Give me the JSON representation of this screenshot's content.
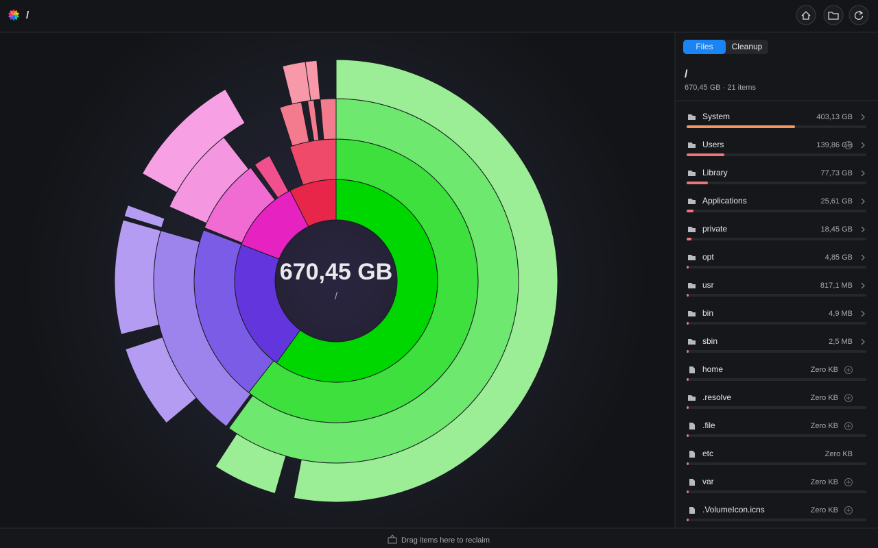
{
  "toolbar": {
    "path": "/"
  },
  "center": {
    "size": "670,45 GB",
    "path": "/"
  },
  "sidebar": {
    "tabs": [
      "Files",
      "Cleanup"
    ],
    "title": "/",
    "summary": "670,45 GB · 21 items",
    "items": [
      {
        "name": "System",
        "size": "403,13 GB"
      },
      {
        "name": "Users",
        "size": "139,86 GB"
      },
      {
        "name": "Library",
        "size": "77,73 GB"
      },
      {
        "name": "Applications",
        "size": "25,61 GB"
      },
      {
        "name": "private",
        "size": "18,45 GB"
      },
      {
        "name": "opt",
        "size": "4,85 GB"
      },
      {
        "name": "usr",
        "size": "817,1 MB"
      },
      {
        "name": "bin",
        "size": "4,9 MB"
      },
      {
        "name": "sbin",
        "size": "2,5 MB"
      },
      {
        "name": "home",
        "size": "Zero KB"
      },
      {
        "name": ".resolve",
        "size": "Zero KB"
      },
      {
        "name": ".file",
        "size": "Zero KB"
      },
      {
        "name": "etc",
        "size": "Zero KB"
      },
      {
        "name": "var",
        "size": "Zero KB"
      },
      {
        "name": ".VolumeIcon.icns",
        "size": "Zero KB"
      }
    ]
  },
  "footer": {
    "hint": "Drag items here to reclaim"
  }
}
